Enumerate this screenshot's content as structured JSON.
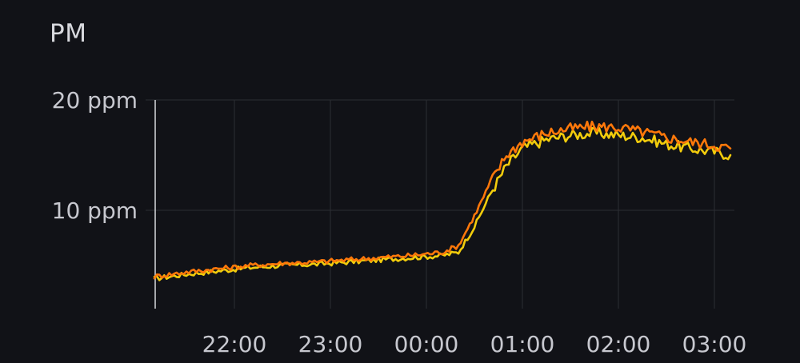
{
  "panel": {
    "title": "PM"
  },
  "chart_data": {
    "type": "line",
    "title": "PM",
    "xlabel": "",
    "ylabel": "",
    "y_unit": "ppm",
    "ylim": [
      0,
      20
    ],
    "y_ticks": [
      {
        "value": 20,
        "label": "20 ppm"
      },
      {
        "value": 10,
        "label": "10 ppm"
      }
    ],
    "x_range": [
      "21:10",
      "03:15"
    ],
    "x_ticks": [
      {
        "time": "22:00",
        "label": "22:00"
      },
      {
        "time": "23:00",
        "label": "23:00"
      },
      {
        "time": "00:00",
        "label": "00:00"
      },
      {
        "time": "01:00",
        "label": "01:00"
      },
      {
        "time": "02:00",
        "label": "02:00"
      },
      {
        "time": "03:00",
        "label": "03:00"
      }
    ],
    "grid": true,
    "legend": "none",
    "series": [
      {
        "color": "#f2cc0c",
        "x": [
          "21:10",
          "21:30",
          "21:50",
          "22:10",
          "22:30",
          "22:50",
          "23:10",
          "23:30",
          "23:50",
          "00:10",
          "00:20",
          "00:30",
          "00:40",
          "00:50",
          "01:00",
          "01:15",
          "01:30",
          "01:45",
          "02:00",
          "02:15",
          "02:30",
          "02:45",
          "03:00",
          "03:10"
        ],
        "values": [
          3.8,
          4.2,
          4.5,
          4.8,
          5.0,
          5.1,
          5.3,
          5.5,
          5.7,
          5.9,
          6.2,
          8.5,
          11.5,
          14.0,
          15.6,
          16.4,
          16.8,
          17.0,
          16.8,
          16.6,
          16.0,
          15.6,
          15.3,
          15.0
        ]
      },
      {
        "color": "#ff780a",
        "x": [
          "21:10",
          "21:30",
          "21:50",
          "22:10",
          "22:30",
          "22:50",
          "23:10",
          "23:30",
          "23:50",
          "00:10",
          "00:20",
          "00:30",
          "00:40",
          "00:50",
          "01:00",
          "01:15",
          "01:30",
          "01:45",
          "02:00",
          "02:15",
          "02:30",
          "02:45",
          "03:00",
          "03:10"
        ],
        "values": [
          4.0,
          4.4,
          4.7,
          5.0,
          5.2,
          5.3,
          5.5,
          5.7,
          5.9,
          6.2,
          6.8,
          9.5,
          12.5,
          15.0,
          16.2,
          17.0,
          17.4,
          17.6,
          17.5,
          17.1,
          16.6,
          16.2,
          15.9,
          15.6
        ]
      }
    ]
  }
}
